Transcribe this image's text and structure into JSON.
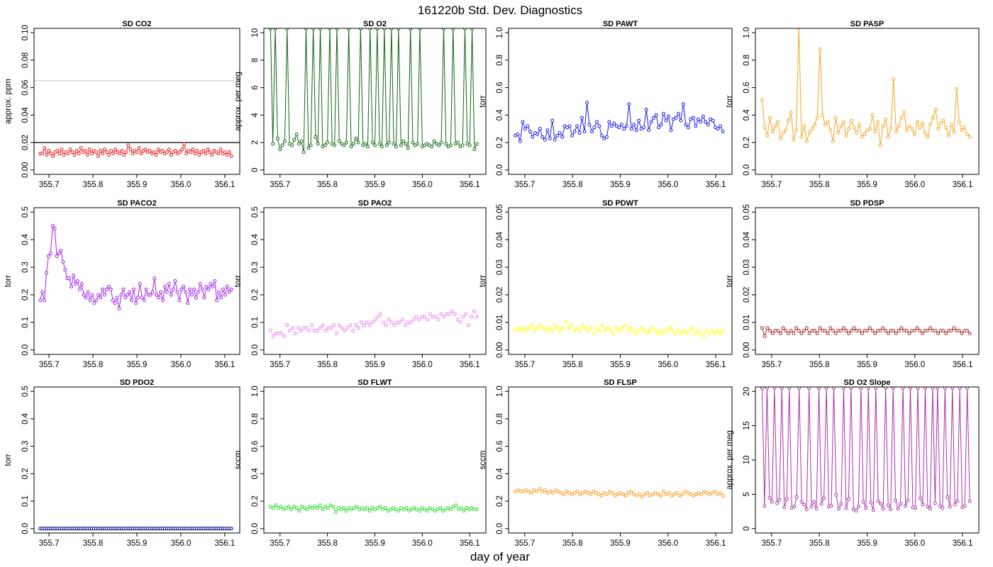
{
  "title": "161220b   Std. Dev. Diagnostics",
  "xlabel": "day of year",
  "chart_data": [
    {
      "type": "line",
      "title": "SD CO2",
      "ylabel": "approx. ppm",
      "color": "#e8161b",
      "xlim": [
        355.68,
        356.12
      ],
      "ylim": [
        0,
        0.1
      ],
      "yticks": [
        "0.00",
        "0.02",
        "0.04",
        "0.06",
        "0.08",
        "0.10"
      ],
      "xticks": [
        "355.7",
        "355.8",
        "355.9",
        "356.0",
        "356.1"
      ],
      "hlines": [
        {
          "y": 0.065,
          "color": "#cccccc"
        },
        {
          "y": 0.02,
          "color": "#000000"
        }
      ],
      "y": [
        0.012,
        0.012,
        0.016,
        0.011,
        0.014,
        0.012,
        0.01,
        0.013,
        0.014,
        0.012,
        0.015,
        0.011,
        0.013,
        0.012,
        0.015,
        0.013,
        0.011,
        0.014,
        0.012,
        0.016,
        0.013,
        0.014,
        0.011,
        0.015,
        0.012,
        0.014,
        0.013,
        0.01,
        0.014,
        0.012,
        0.015,
        0.013,
        0.011,
        0.014,
        0.012,
        0.015,
        0.013,
        0.012,
        0.014,
        0.011,
        0.013,
        0.018,
        0.015,
        0.012,
        0.014,
        0.013,
        0.016,
        0.012,
        0.014,
        0.015,
        0.013,
        0.014,
        0.012,
        0.013,
        0.011,
        0.015,
        0.013,
        0.014,
        0.012,
        0.013,
        0.015,
        0.011,
        0.013,
        0.014,
        0.012,
        0.013,
        0.015,
        0.019,
        0.012,
        0.014,
        0.013,
        0.015,
        0.012,
        0.014,
        0.011,
        0.013,
        0.014,
        0.012,
        0.015,
        0.013,
        0.011,
        0.014,
        0.013,
        0.012,
        0.015,
        0.012,
        0.013,
        0.011,
        0.013,
        0.01
      ]
    },
    {
      "type": "line",
      "title": "SD O2",
      "ylabel": "approx. per meg",
      "color": "#116611",
      "xlim": [
        355.68,
        356.12
      ],
      "ylim": [
        0,
        10
      ],
      "yticks": [
        "0",
        "2",
        "4",
        "6",
        "8",
        "10"
      ],
      "xticks": [
        "355.7",
        "355.8",
        "355.9",
        "356.0",
        "356.1"
      ],
      "y": [
        10.3,
        1.9,
        10.3,
        2.3,
        1.5,
        1.8,
        2.1,
        10.3,
        1.9,
        1.8,
        2.2,
        2.6,
        1.9,
        2.1,
        1.3,
        10.3,
        1.6,
        1.8,
        10.3,
        2.4,
        1.9,
        10.3,
        1.7,
        1.8,
        2.0,
        10.3,
        1.9,
        1.8,
        10.3,
        2.1,
        1.9,
        1.8,
        2.0,
        10.3,
        1.7,
        1.9,
        2.3,
        2.0,
        10.3,
        1.8,
        1.9,
        1.7,
        10.3,
        2.0,
        1.8,
        10.3,
        1.9,
        1.7,
        10.3,
        1.8,
        2.0,
        10.3,
        1.9,
        1.7,
        10.3,
        1.8,
        2.1,
        1.9,
        1.6,
        10.3,
        2.0,
        1.8,
        1.9,
        10.3,
        1.7,
        1.8,
        1.9,
        1.8,
        1.7,
        2.1,
        1.9,
        1.8,
        2.0,
        10.3,
        1.9,
        1.7,
        1.8,
        10.3,
        1.9,
        2.0,
        1.7,
        1.8,
        10.3,
        1.9,
        1.8,
        10.3,
        1.5,
        1.9
      ]
    },
    {
      "type": "line",
      "title": "SD PAWT",
      "ylabel": "torr",
      "color": "#1a1ae6",
      "xlim": [
        355.68,
        356.12
      ],
      "ylim": [
        0,
        1
      ],
      "yticks": [
        "0.0",
        "0.2",
        "0.4",
        "0.6",
        "0.8",
        "1.0"
      ],
      "xticks": [
        "355.7",
        "355.8",
        "355.9",
        "356.0",
        "356.1"
      ],
      "y": [
        0.25,
        0.26,
        0.21,
        0.35,
        0.3,
        0.32,
        0.28,
        0.24,
        0.27,
        0.26,
        0.3,
        0.24,
        0.22,
        0.29,
        0.23,
        0.36,
        0.22,
        0.25,
        0.27,
        0.24,
        0.32,
        0.31,
        0.32,
        0.25,
        0.28,
        0.32,
        0.27,
        0.38,
        0.28,
        0.49,
        0.33,
        0.28,
        0.31,
        0.35,
        0.32,
        0.25,
        0.23,
        0.24,
        0.35,
        0.32,
        0.34,
        0.32,
        0.31,
        0.33,
        0.3,
        0.32,
        0.48,
        0.3,
        0.33,
        0.29,
        0.36,
        0.3,
        0.31,
        0.44,
        0.29,
        0.35,
        0.38,
        0.4,
        0.31,
        0.33,
        0.41,
        0.36,
        0.39,
        0.29,
        0.37,
        0.38,
        0.41,
        0.36,
        0.48,
        0.33,
        0.31,
        0.37,
        0.38,
        0.32,
        0.37,
        0.35,
        0.39,
        0.35,
        0.33,
        0.37,
        0.36,
        0.31,
        0.3,
        0.32,
        0.28
      ]
    },
    {
      "type": "line",
      "title": "SD PASP",
      "ylabel": "torr",
      "color": "#f5a623",
      "xlim": [
        355.68,
        356.12
      ],
      "ylim": [
        0,
        1
      ],
      "yticks": [
        "0.0",
        "0.2",
        "0.4",
        "0.6",
        "0.8",
        "1.0"
      ],
      "xticks": [
        "355.7",
        "355.8",
        "355.9",
        "356.0",
        "356.1"
      ],
      "y": [
        0.51,
        0.31,
        0.25,
        0.38,
        0.28,
        0.32,
        0.35,
        0.23,
        0.27,
        0.29,
        0.36,
        0.42,
        0.22,
        0.29,
        1.05,
        0.24,
        0.32,
        0.21,
        0.27,
        0.3,
        0.33,
        0.38,
        0.88,
        0.4,
        0.33,
        0.35,
        0.29,
        0.21,
        0.38,
        0.27,
        0.32,
        0.35,
        0.25,
        0.3,
        0.36,
        0.31,
        0.27,
        0.33,
        0.24,
        0.26,
        0.29,
        0.3,
        0.4,
        0.28,
        0.35,
        0.18,
        0.32,
        0.37,
        0.24,
        0.3,
        0.66,
        0.28,
        0.32,
        0.38,
        0.42,
        0.29,
        0.32,
        0.3,
        0.26,
        0.35,
        0.31,
        0.34,
        0.27,
        0.24,
        0.33,
        0.38,
        0.44,
        0.3,
        0.34,
        0.36,
        0.31,
        0.25,
        0.33,
        0.28,
        0.59,
        0.35,
        0.29,
        0.31,
        0.26,
        0.24
      ]
    },
    {
      "type": "line",
      "title": "SD PACO2",
      "ylabel": "torr",
      "color": "#a020f0",
      "xlim": [
        355.68,
        356.12
      ],
      "ylim": [
        0,
        0.5
      ],
      "yticks": [
        "0.0",
        "0.1",
        "0.2",
        "0.3",
        "0.4",
        "0.5"
      ],
      "xticks": [
        "355.7",
        "355.8",
        "355.9",
        "356.0",
        "356.1"
      ],
      "y": [
        0.18,
        0.21,
        0.18,
        0.28,
        0.34,
        0.35,
        0.45,
        0.44,
        0.34,
        0.35,
        0.36,
        0.32,
        0.29,
        0.26,
        0.26,
        0.23,
        0.27,
        0.24,
        0.25,
        0.22,
        0.24,
        0.2,
        0.19,
        0.21,
        0.18,
        0.2,
        0.17,
        0.18,
        0.2,
        0.19,
        0.22,
        0.2,
        0.22,
        0.23,
        0.22,
        0.18,
        0.17,
        0.19,
        0.15,
        0.2,
        0.22,
        0.19,
        0.2,
        0.21,
        0.18,
        0.22,
        0.17,
        0.19,
        0.24,
        0.19,
        0.18,
        0.22,
        0.2,
        0.2,
        0.21,
        0.26,
        0.2,
        0.19,
        0.21,
        0.18,
        0.23,
        0.21,
        0.24,
        0.2,
        0.22,
        0.25,
        0.21,
        0.18,
        0.22,
        0.23,
        0.21,
        0.17,
        0.22,
        0.2,
        0.22,
        0.19,
        0.21,
        0.24,
        0.22,
        0.19,
        0.23,
        0.22,
        0.24,
        0.23,
        0.25,
        0.18,
        0.21,
        0.19,
        0.22,
        0.2,
        0.23,
        0.21,
        0.22
      ]
    },
    {
      "type": "scatter",
      "title": "SD PAO2",
      "ylabel": "torr",
      "color": "#ee82ee",
      "xlim": [
        355.68,
        356.12
      ],
      "ylim": [
        0,
        0.5
      ],
      "yticks": [
        "0.0",
        "0.1",
        "0.2",
        "0.3",
        "0.4",
        "0.5"
      ],
      "xticks": [
        "355.7",
        "355.8",
        "355.9",
        "356.0",
        "356.1"
      ],
      "y": [
        0.07,
        0.05,
        0.06,
        0.06,
        0.06,
        0.05,
        0.09,
        0.07,
        0.08,
        0.06,
        0.08,
        0.07,
        0.08,
        0.08,
        0.07,
        0.09,
        0.07,
        0.07,
        0.08,
        0.09,
        0.07,
        0.08,
        0.08,
        0.09,
        0.06,
        0.09,
        0.08,
        0.07,
        0.08,
        0.09,
        0.07,
        0.09,
        0.08,
        0.1,
        0.09,
        0.1,
        0.09,
        0.1,
        0.11,
        0.12,
        0.13,
        0.1,
        0.09,
        0.11,
        0.1,
        0.09,
        0.1,
        0.1,
        0.11,
        0.09,
        0.1,
        0.1,
        0.11,
        0.12,
        0.11,
        0.12,
        0.12,
        0.11,
        0.13,
        0.12,
        0.12,
        0.11,
        0.13,
        0.12,
        0.13,
        0.13,
        0.14,
        0.13,
        0.11,
        0.1,
        0.12,
        0.13,
        0.09,
        0.12,
        0.14,
        0.12
      ]
    },
    {
      "type": "scatter",
      "title": "SD PDWT",
      "ylabel": "torr",
      "color": "#ffff00",
      "xlim": [
        355.68,
        356.12
      ],
      "ylim": [
        0,
        0.05
      ],
      "yticks": [
        "0.00",
        "0.01",
        "0.02",
        "0.03",
        "0.04",
        "0.05"
      ],
      "xticks": [
        "355.7",
        "355.8",
        "355.9",
        "356.0",
        "356.1"
      ],
      "y": [
        0.007,
        0.008,
        0.007,
        0.008,
        0.007,
        0.008,
        0.009,
        0.007,
        0.008,
        0.009,
        0.008,
        0.007,
        0.008,
        0.007,
        0.009,
        0.008,
        0.007,
        0.008,
        0.01,
        0.008,
        0.009,
        0.007,
        0.008,
        0.007,
        0.009,
        0.008,
        0.007,
        0.008,
        0.006,
        0.008,
        0.007,
        0.009,
        0.007,
        0.008,
        0.007,
        0.006,
        0.008,
        0.007,
        0.008,
        0.009,
        0.007,
        0.008,
        0.007,
        0.006,
        0.007,
        0.008,
        0.007,
        0.006,
        0.007,
        0.008,
        0.007,
        0.006,
        0.007,
        0.006,
        0.007,
        0.008,
        0.007,
        0.006,
        0.007,
        0.006,
        0.007,
        0.006,
        0.007,
        0.008,
        0.006,
        0.007,
        0.006,
        0.005,
        0.007,
        0.006,
        0.007,
        0.006,
        0.007,
        0.006,
        0.007
      ]
    },
    {
      "type": "line",
      "title": "SD PDSP",
      "ylabel": "torr",
      "color": "#a52a2a",
      "xlim": [
        355.68,
        356.12
      ],
      "ylim": [
        0,
        0.05
      ],
      "yticks": [
        "0.00",
        "0.01",
        "0.02",
        "0.03",
        "0.04",
        "0.05"
      ],
      "xticks": [
        "355.7",
        "355.8",
        "355.9",
        "356.0",
        "356.1"
      ],
      "y": [
        0.008,
        0.005,
        0.008,
        0.007,
        0.006,
        0.007,
        0.007,
        0.006,
        0.008,
        0.007,
        0.006,
        0.007,
        0.006,
        0.008,
        0.007,
        0.006,
        0.007,
        0.008,
        0.006,
        0.007,
        0.007,
        0.006,
        0.008,
        0.007,
        0.007,
        0.006,
        0.008,
        0.007,
        0.006,
        0.007,
        0.007,
        0.008,
        0.007,
        0.006,
        0.007,
        0.008,
        0.007,
        0.007,
        0.006,
        0.007,
        0.007,
        0.008,
        0.007,
        0.006,
        0.007,
        0.007,
        0.008,
        0.007,
        0.006,
        0.007,
        0.007,
        0.006,
        0.007,
        0.008,
        0.007,
        0.007,
        0.006,
        0.007,
        0.007,
        0.008,
        0.007,
        0.006,
        0.007,
        0.007,
        0.008,
        0.007,
        0.007,
        0.006,
        0.007,
        0.007,
        0.006,
        0.007,
        0.007,
        0.008,
        0.007,
        0.007,
        0.006,
        0.007,
        0.007,
        0.006
      ]
    },
    {
      "type": "line",
      "title": "SD PDO2",
      "ylabel": "torr",
      "color": "#00008b",
      "xlim": [
        355.68,
        356.12
      ],
      "ylim": [
        0,
        0.5
      ],
      "yticks": [
        "0.0",
        "0.1",
        "0.2",
        "0.3",
        "0.4",
        "0.5"
      ],
      "xticks": [
        "355.7",
        "355.8",
        "355.9",
        "356.0",
        "356.1"
      ],
      "y": [
        0,
        0,
        0,
        0,
        0,
        0,
        0,
        0,
        0,
        0,
        0,
        0,
        0,
        0,
        0,
        0,
        0,
        0,
        0,
        0,
        0,
        0,
        0,
        0,
        0,
        0,
        0,
        0,
        0,
        0,
        0,
        0,
        0,
        0,
        0,
        0,
        0,
        0,
        0,
        0,
        0,
        0,
        0,
        0,
        0,
        0,
        0,
        0,
        0,
        0,
        0,
        0,
        0,
        0,
        0,
        0,
        0,
        0,
        0,
        0,
        0,
        0,
        0,
        0,
        0,
        0,
        0,
        0,
        0,
        0,
        0,
        0,
        0,
        0,
        0,
        0,
        0,
        0,
        0,
        0,
        0,
        0,
        0,
        0,
        0,
        0,
        0,
        0,
        0,
        0
      ]
    },
    {
      "type": "line",
      "title": "SD FLWT",
      "ylabel": "sccm",
      "color": "#22dd22",
      "xlim": [
        355.68,
        356.12
      ],
      "ylim": [
        0,
        1
      ],
      "yticks": [
        "0.0",
        "0.2",
        "0.4",
        "0.6",
        "0.8",
        "1.0"
      ],
      "xticks": [
        "355.7",
        "355.8",
        "355.9",
        "356.0",
        "356.1"
      ],
      "y": [
        0.16,
        0.15,
        0.17,
        0.15,
        0.16,
        0.14,
        0.15,
        0.16,
        0.14,
        0.16,
        0.15,
        0.13,
        0.16,
        0.15,
        0.14,
        0.16,
        0.15,
        0.16,
        0.15,
        0.17,
        0.14,
        0.16,
        0.15,
        0.17,
        0.16,
        0.12,
        0.15,
        0.14,
        0.15,
        0.13,
        0.15,
        0.14,
        0.15,
        0.16,
        0.14,
        0.15,
        0.14,
        0.15,
        0.13,
        0.15,
        0.14,
        0.15,
        0.16,
        0.14,
        0.15,
        0.13,
        0.14,
        0.15,
        0.14,
        0.13,
        0.15,
        0.14,
        0.15,
        0.13,
        0.14,
        0.15,
        0.14,
        0.13,
        0.15,
        0.14,
        0.13,
        0.15,
        0.14,
        0.13,
        0.14,
        0.15,
        0.13,
        0.14,
        0.15,
        0.14,
        0.16,
        0.17,
        0.14,
        0.15,
        0.13,
        0.15,
        0.14,
        0.15,
        0.14,
        0.14
      ]
    },
    {
      "type": "scatter",
      "title": "SD FLSP",
      "ylabel": "sccm",
      "color": "#ff9a1a",
      "xlim": [
        355.68,
        356.12
      ],
      "ylim": [
        0,
        1
      ],
      "yticks": [
        "0.0",
        "0.2",
        "0.4",
        "0.6",
        "0.8",
        "1.0"
      ],
      "xticks": [
        "355.7",
        "355.8",
        "355.9",
        "356.0",
        "356.1"
      ],
      "y": [
        0.27,
        0.28,
        0.27,
        0.27,
        0.28,
        0.27,
        0.26,
        0.28,
        0.27,
        0.29,
        0.27,
        0.28,
        0.26,
        0.27,
        0.26,
        0.28,
        0.27,
        0.26,
        0.25,
        0.27,
        0.26,
        0.25,
        0.26,
        0.27,
        0.25,
        0.26,
        0.27,
        0.26,
        0.25,
        0.27,
        0.26,
        0.25,
        0.24,
        0.26,
        0.25,
        0.27,
        0.26,
        0.24,
        0.25,
        0.26,
        0.25,
        0.24,
        0.26,
        0.27,
        0.25,
        0.24,
        0.25,
        0.23,
        0.25,
        0.26,
        0.24,
        0.25,
        0.26,
        0.25,
        0.24,
        0.27,
        0.25,
        0.26,
        0.24,
        0.25,
        0.26,
        0.24,
        0.25,
        0.27,
        0.26,
        0.25,
        0.24,
        0.25,
        0.26,
        0.25,
        0.27,
        0.26,
        0.25,
        0.26,
        0.27,
        0.25,
        0.26,
        0.24
      ]
    },
    {
      "type": "line",
      "title": "SD O2 Slope",
      "ylabel": "approx. per meg",
      "color": "#aa33aa",
      "xlim": [
        355.68,
        356.12
      ],
      "ylim": [
        0,
        20
      ],
      "yticks": [
        "0",
        "5",
        "10",
        "15",
        "20"
      ],
      "xticks": [
        "355.7",
        "355.8",
        "355.9",
        "356.0",
        "356.1"
      ],
      "y": [
        20.5,
        3.3,
        20.5,
        4.5,
        3.9,
        20.5,
        3.7,
        4.2,
        20.5,
        3.1,
        4.3,
        20.5,
        3.0,
        3.2,
        4.6,
        20.5,
        3.9,
        3.5,
        2.8,
        20.5,
        3.2,
        3.9,
        2.9,
        20.5,
        3.6,
        4.4,
        20.5,
        3.2,
        3.3,
        20.5,
        4.9,
        2.9,
        3.6,
        20.5,
        3.0,
        4.3,
        20.5,
        2.8,
        2.6,
        3.2,
        20.5,
        3.9,
        3.0,
        20.5,
        3.8,
        2.7,
        20.5,
        4.0,
        3.6,
        2.9,
        20.5,
        3.4,
        2.8,
        20.5,
        4.1,
        2.9,
        3.6,
        20.5,
        3.3,
        4.1,
        20.5,
        3.1,
        3.0,
        20.5,
        4.4,
        3.5,
        20.5,
        3.2,
        2.9,
        20.5,
        3.7,
        20.5,
        3.3,
        3.0,
        20.5,
        4.6,
        3.2,
        20.5,
        3.5,
        4.0,
        20.5,
        3.1,
        3.3,
        20.5,
        4.0
      ]
    }
  ]
}
